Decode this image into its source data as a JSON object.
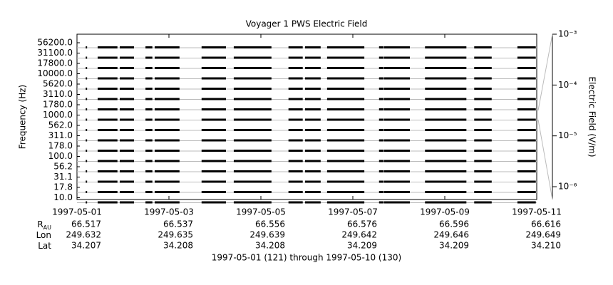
{
  "chart_data": {
    "type": "channel-strip",
    "title": "Voyager 1 PWS Electric Field",
    "ylabel": "Frequency (Hz)",
    "y2label": "Electric Field (V/m)",
    "channels": [
      "56200.0",
      "31100.0",
      "17800.0",
      "10000.0",
      "5620.0",
      "3110.0",
      "1780.0",
      "1000.0",
      "562.0",
      "311.0",
      "178.0",
      "100.0",
      "56.2",
      "31.1",
      "17.8",
      "10.0"
    ],
    "xlim": [
      0,
      10
    ],
    "xticks": [
      {
        "value": 0,
        "label": "1997-05-01"
      },
      {
        "value": 2,
        "label": "1997-05-03"
      },
      {
        "value": 4,
        "label": "1997-05-05"
      },
      {
        "value": 6,
        "label": "1997-05-07"
      },
      {
        "value": 8,
        "label": "1997-05-09"
      },
      {
        "value": 10,
        "label": "1997-05-11"
      }
    ],
    "coverage": [
      [
        0.19,
        0.22
      ],
      [
        0.45,
        0.88
      ],
      [
        0.93,
        1.24
      ],
      [
        1.49,
        1.64
      ],
      [
        1.69,
        2.23
      ],
      [
        2.71,
        3.24
      ],
      [
        3.41,
        4.23
      ],
      [
        4.6,
        4.91
      ],
      [
        4.96,
        5.3
      ],
      [
        5.44,
        6.25
      ],
      [
        6.57,
        6.67
      ],
      [
        6.68,
        7.24
      ],
      [
        7.57,
        8.47
      ],
      [
        8.64,
        9.02
      ],
      [
        9.58,
        9.98
      ]
    ],
    "y2log": true,
    "y2lim": [
      5.6e-07,
      0.001
    ],
    "y2ticks": [
      {
        "value": 0.001,
        "label": "10⁻³"
      },
      {
        "value": 0.0001,
        "label": "10⁻⁴"
      },
      {
        "value": 1e-05,
        "label": "10⁻⁵"
      },
      {
        "value": 1e-06,
        "label": "10⁻⁶"
      }
    ],
    "ephemeris": [
      {
        "label": "R",
        "sub": "AU",
        "values": [
          "66.517",
          "66.537",
          "66.556",
          "66.576",
          "66.596",
          "66.616"
        ]
      },
      {
        "label": "Lon",
        "values": [
          "249.632",
          "249.635",
          "249.639",
          "249.642",
          "249.646",
          "249.649"
        ]
      },
      {
        "label": "Lat",
        "values": [
          "34.207",
          "34.208",
          "34.208",
          "34.209",
          "34.209",
          "34.210"
        ]
      }
    ],
    "footer": "1997-05-01 (121) through 1997-05-10 (130)"
  }
}
